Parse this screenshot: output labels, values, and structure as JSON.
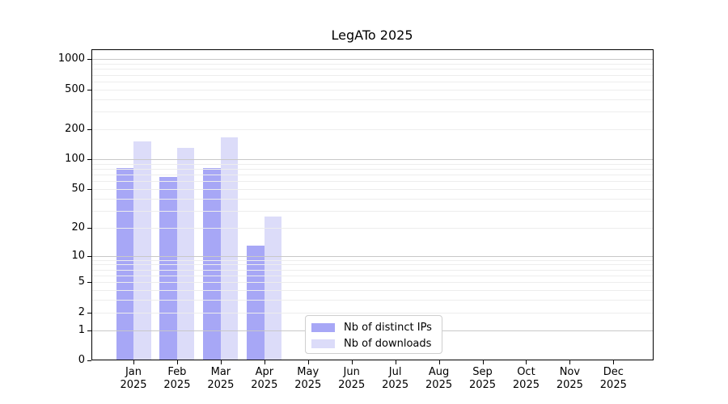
{
  "figure": {
    "title": "LegATo 2025"
  },
  "chart_data": {
    "type": "bar",
    "title": "LegATo 2025",
    "x_categories": [
      "Jan",
      "Feb",
      "Mar",
      "Apr",
      "May",
      "Jun",
      "Jul",
      "Aug",
      "Sep",
      "Oct",
      "Nov",
      "Dec"
    ],
    "x_year": "2025",
    "series": [
      {
        "name": "Nb of distinct IPs",
        "color": "#a7a7f6",
        "values": [
          82,
          66,
          81,
          13,
          0,
          0,
          0,
          0,
          0,
          0,
          0,
          0
        ]
      },
      {
        "name": "Nb of downloads",
        "color": "#dcdcf9",
        "values": [
          150,
          130,
          165,
          26,
          0,
          0,
          0,
          0,
          0,
          0,
          0,
          0
        ]
      }
    ],
    "y_scale": "log10(value+1)",
    "y_ticks": [
      0,
      1,
      2,
      5,
      10,
      20,
      50,
      100,
      200,
      500,
      1000
    ],
    "y_major_gridlines": [
      1,
      10,
      100,
      1000
    ],
    "ylim": [
      0,
      1250
    ],
    "grid": "horizontal",
    "legend_position": "inside bottom-center",
    "colors": {
      "major_grid": "#c8c8c8",
      "minor_grid": "#ededed",
      "axis": "#000000",
      "legend_border": "#cfcfcf",
      "background": "#ffffff",
      "text": "#000000"
    }
  }
}
